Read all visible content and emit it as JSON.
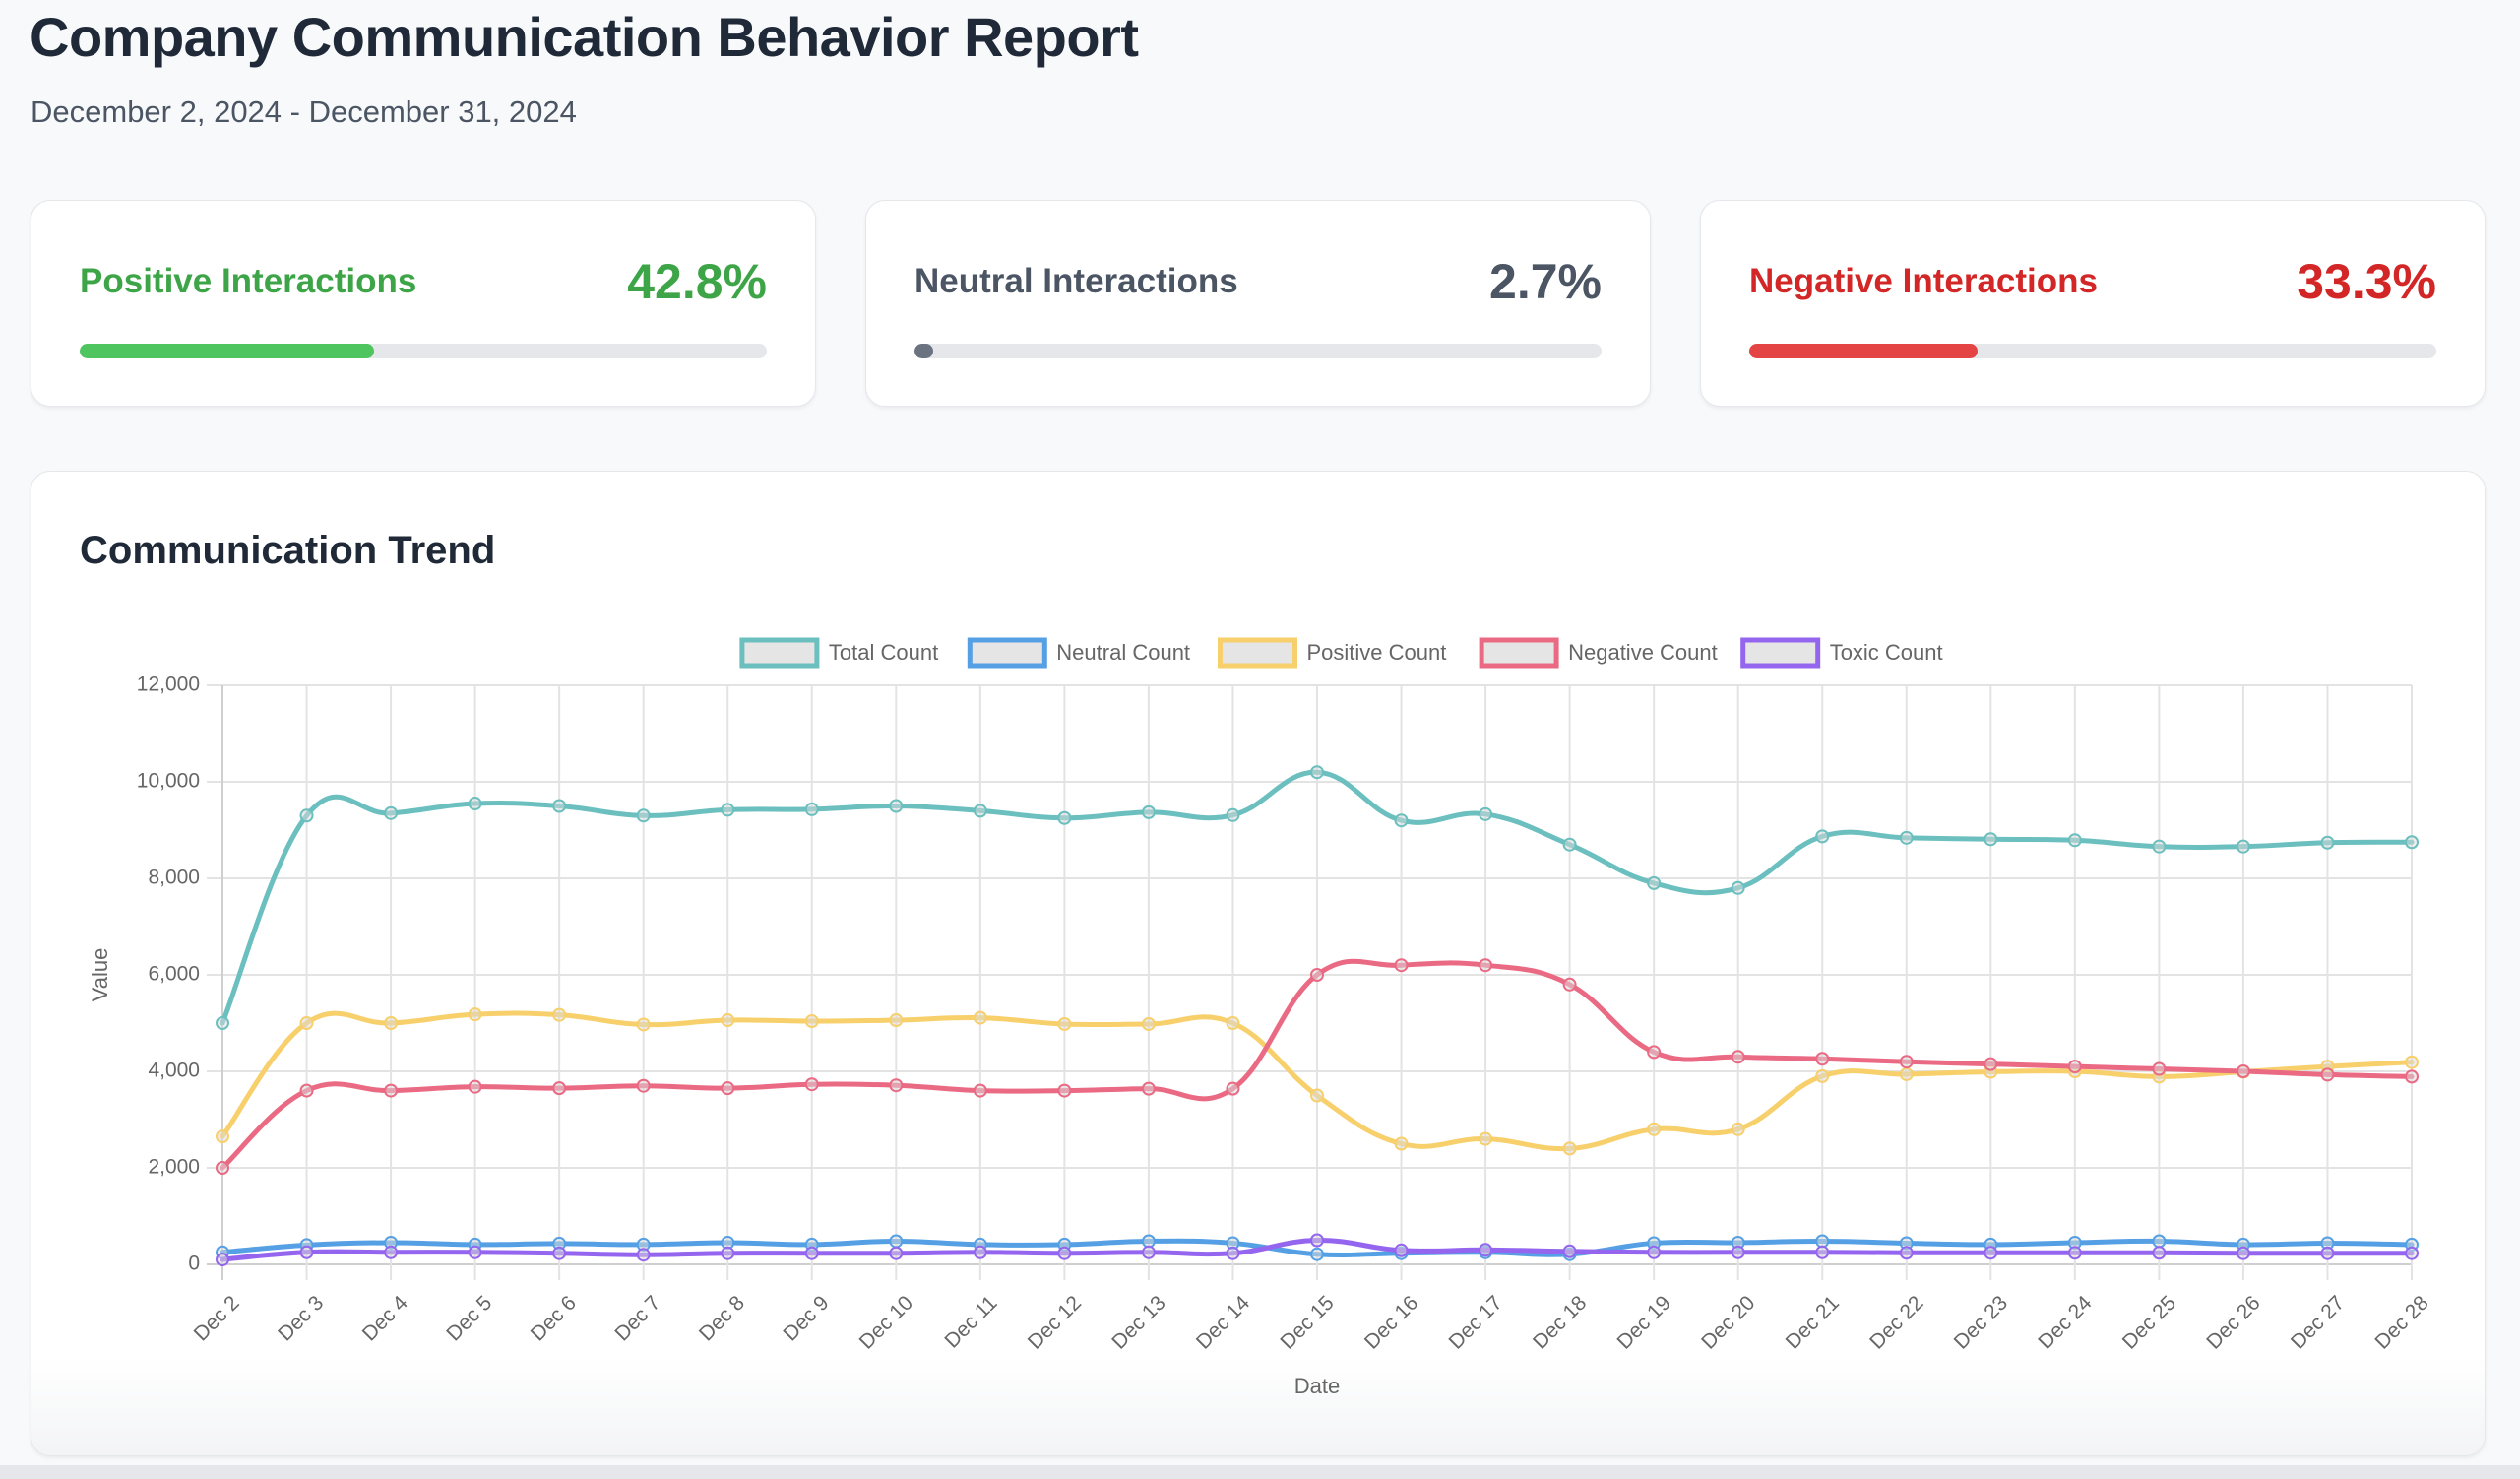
{
  "header": {
    "title": "Company Communication Behavior Report",
    "subtitle": "December 2, 2024 - December 31, 2024"
  },
  "summary_cards": [
    {
      "label": "Positive Interactions",
      "value": "42.8%",
      "percent": 42.8,
      "text_color": "#3da547",
      "bar_color": "#4fc560"
    },
    {
      "label": "Neutral Interactions",
      "value": "2.7%",
      "percent": 2.7,
      "text_color": "#4b5563",
      "bar_color": "#6b7280"
    },
    {
      "label": "Negative Interactions",
      "value": "33.3%",
      "percent": 33.3,
      "text_color": "#d32626",
      "bar_color": "#e54444"
    }
  ],
  "chart_card": {
    "title": "Communication Trend"
  },
  "chart_data": {
    "type": "line",
    "title": "Communication Trend",
    "xlabel": "Date",
    "ylabel": "Value",
    "ylim": [
      0,
      12000
    ],
    "yticks": [
      0,
      2000,
      4000,
      6000,
      8000,
      10000,
      12000
    ],
    "ytick_labels": [
      "0",
      "2,000",
      "4,000",
      "6,000",
      "8,000",
      "10,000",
      "12,000"
    ],
    "grid": true,
    "legend_position": "top-center",
    "x": [
      "Dec 2",
      "Dec 3",
      "Dec 4",
      "Dec 5",
      "Dec 6",
      "Dec 7",
      "Dec 8",
      "Dec 9",
      "Dec 10",
      "Dec 11",
      "Dec 12",
      "Dec 13",
      "Dec 14",
      "Dec 15",
      "Dec 16",
      "Dec 17",
      "Dec 18",
      "Dec 19",
      "Dec 20",
      "Dec 21",
      "Dec 22",
      "Dec 23",
      "Dec 24",
      "Dec 25",
      "Dec 26",
      "Dec 27",
      "Dec 28"
    ],
    "series": [
      {
        "name": "Total Count",
        "color": "#6bbfbf",
        "values": [
          5000,
          9300,
          9350,
          9550,
          9500,
          9300,
          9420,
          9430,
          9500,
          9400,
          9250,
          9370,
          9310,
          10200,
          9200,
          9330,
          8700,
          7900,
          7800,
          8870,
          8840,
          8810,
          8790,
          8660,
          8660,
          8740,
          8750
        ]
      },
      {
        "name": "Neutral Count",
        "color": "#55a0e5",
        "values": [
          250,
          400,
          450,
          410,
          430,
          410,
          450,
          410,
          480,
          410,
          410,
          480,
          440,
          210,
          230,
          250,
          210,
          440,
          450,
          480,
          440,
          410,
          450,
          480,
          410,
          440,
          410
        ]
      },
      {
        "name": "Positive Count",
        "color": "#f7cf6b",
        "values": [
          2650,
          5000,
          5000,
          5180,
          5170,
          4970,
          5060,
          5040,
          5060,
          5110,
          4980,
          4980,
          5000,
          3500,
          2500,
          2600,
          2400,
          2800,
          2800,
          3900,
          3940,
          3990,
          4000,
          3890,
          3990,
          4100,
          4190
        ]
      },
      {
        "name": "Negative Count",
        "color": "#ea6a84",
        "values": [
          2000,
          3600,
          3600,
          3680,
          3650,
          3700,
          3650,
          3730,
          3710,
          3600,
          3600,
          3640,
          3640,
          6000,
          6200,
          6200,
          5800,
          4400,
          4300,
          4260,
          4200,
          4150,
          4100,
          4050,
          4000,
          3930,
          3890
        ]
      },
      {
        "name": "Toxic Count",
        "color": "#9465ee",
        "values": [
          100,
          250,
          250,
          250,
          230,
          200,
          230,
          230,
          230,
          250,
          230,
          250,
          230,
          500,
          290,
          300,
          270,
          250,
          250,
          250,
          240,
          240,
          240,
          240,
          230,
          230,
          230
        ]
      }
    ]
  }
}
